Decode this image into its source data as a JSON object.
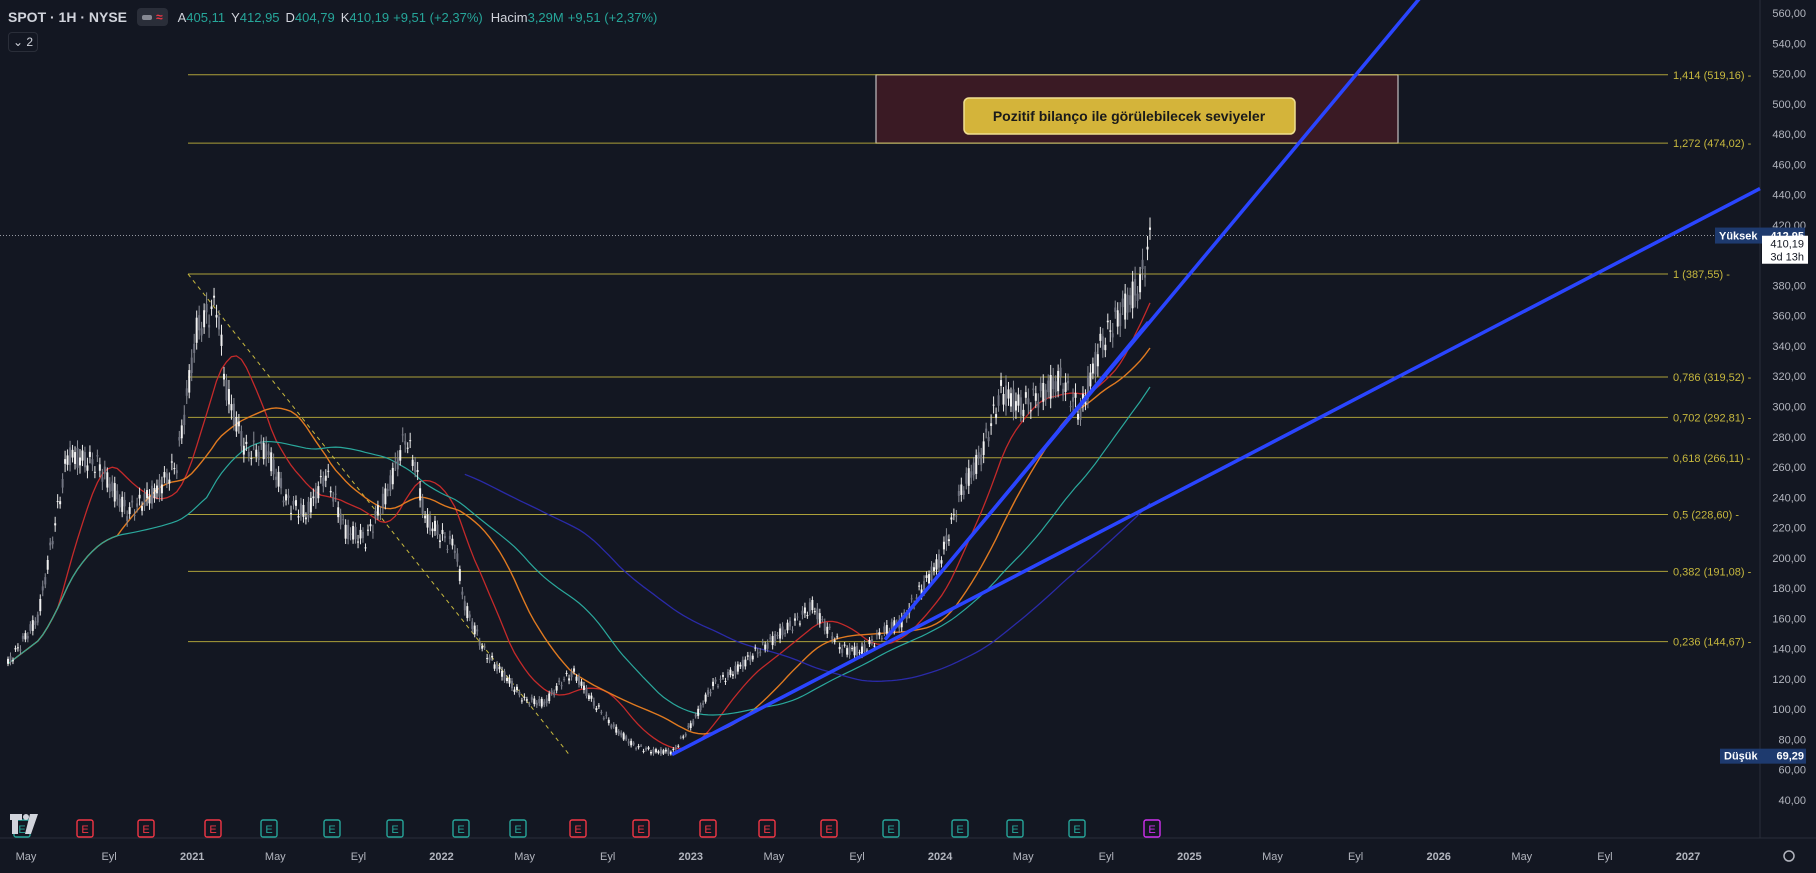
{
  "header": {
    "symbol": "SPOT · 1H · NYSE",
    "open_label": "A",
    "open": "405,11",
    "high_label": "Y",
    "high": "412,95",
    "low_label": "D",
    "low": "404,79",
    "close_label": "K",
    "close": "410,19",
    "change": "+9,51 (+2,37%)",
    "volume_label": "Hacim",
    "volume": "3,29M",
    "volume_change": "+9,51 (+2,37%)",
    "indicator_count": "2"
  },
  "colors": {
    "background": "#131722",
    "fib": "#c7b83e",
    "trendline": "#2a45ff",
    "ma_red": "#c42a2a",
    "ma_orange": "#e07a20",
    "ma_teal": "#2aa89c",
    "ma_navy": "#2a2aa8",
    "candle": "#e6e6e6",
    "annotation_bg": "#d4b43a",
    "zone_bg": "#3a1a24",
    "earnings_red": "#f23645",
    "earnings_green": "#26a69a",
    "earnings_purple": "#d030f0"
  },
  "chart_data": {
    "type": "candlestick",
    "title": "",
    "xlabel": "",
    "ylabel": "",
    "ylim": [
      40,
      565
    ],
    "y_ticks": [
      "560,00",
      "540,00",
      "520,00",
      "500,00",
      "480,00",
      "460,00",
      "440,00",
      "420,00",
      "380,00",
      "360,00",
      "340,00",
      "320,00",
      "300,00",
      "280,00",
      "260,00",
      "240,00",
      "220,00",
      "200,00",
      "180,00",
      "160,00",
      "140,00",
      "120,00",
      "100,00",
      "80,00",
      "60,00",
      "40,00"
    ],
    "x_ticks": [
      "May",
      "Eyl",
      "2021",
      "May",
      "Eyl",
      "2022",
      "May",
      "Eyl",
      "2023",
      "May",
      "Eyl",
      "2024",
      "May",
      "Eyl",
      "2025",
      "May",
      "Eyl",
      "2026",
      "May",
      "Eyl",
      "2027"
    ],
    "x_tick_bold": [
      false,
      false,
      true,
      false,
      false,
      true,
      false,
      false,
      true,
      false,
      false,
      true,
      false,
      false,
      true,
      false,
      false,
      true,
      false,
      false,
      true
    ],
    "fib_levels": [
      {
        "label": "1,414 (519,16)",
        "value": 519.16
      },
      {
        "label": "1,272 (474,02)",
        "value": 474.02
      },
      {
        "label": "1 (387,55)",
        "value": 387.55
      },
      {
        "label": "0,786 (319,52)",
        "value": 319.52
      },
      {
        "label": "0,702 (292,81)",
        "value": 292.81
      },
      {
        "label": "0,618 (266,11)",
        "value": 266.11
      },
      {
        "label": "0,5 (228,60)",
        "value": 228.6
      },
      {
        "label": "0,382 (191,08)",
        "value": 191.08
      },
      {
        "label": "0,236 (144,67)",
        "value": 144.67
      }
    ],
    "high_marker": {
      "label": "Yüksek",
      "value": "412,95",
      "y": 412.95
    },
    "low_marker": {
      "label": "Düşük",
      "value": "69,29",
      "y": 69.29
    },
    "last_price": {
      "value": "410,19",
      "countdown": "3d 13h",
      "y": 410.19
    },
    "annotation": {
      "text": "Pozitif bilanço ile görülebilecek seviyeler",
      "zone_top": 519.16,
      "zone_bottom": 474.02
    },
    "earnings_markers": [
      {
        "label": "E",
        "color": "green"
      },
      {
        "label": "E",
        "color": "red"
      },
      {
        "label": "E",
        "color": "red"
      },
      {
        "label": "E",
        "color": "red"
      },
      {
        "label": "E",
        "color": "green"
      },
      {
        "label": "E",
        "color": "green"
      },
      {
        "label": "E",
        "color": "green"
      },
      {
        "label": "E",
        "color": "green"
      },
      {
        "label": "E",
        "color": "green"
      },
      {
        "label": "E",
        "color": "red"
      },
      {
        "label": "E",
        "color": "red"
      },
      {
        "label": "E",
        "color": "red"
      },
      {
        "label": "E",
        "color": "red"
      },
      {
        "label": "E",
        "color": "red"
      },
      {
        "label": "E",
        "color": "green"
      },
      {
        "label": "E",
        "color": "green"
      },
      {
        "label": "E",
        "color": "green"
      },
      {
        "label": "E",
        "color": "green"
      },
      {
        "label": "E",
        "color": "purple"
      }
    ],
    "price_path": [
      [
        0,
        130
      ],
      [
        3,
        160
      ],
      [
        6,
        268
      ],
      [
        9,
        262
      ],
      [
        12,
        230
      ],
      [
        15,
        244
      ],
      [
        17,
        262
      ],
      [
        19,
        350
      ],
      [
        21,
        368
      ],
      [
        22,
        310
      ],
      [
        24,
        270
      ],
      [
        26,
        272
      ],
      [
        28,
        238
      ],
      [
        30,
        228
      ],
      [
        32,
        256
      ],
      [
        34,
        218
      ],
      [
        36,
        212
      ],
      [
        38,
        240
      ],
      [
        40,
        280
      ],
      [
        41,
        262
      ],
      [
        42,
        226
      ],
      [
        44,
        212
      ],
      [
        45,
        208
      ],
      [
        46,
        168
      ],
      [
        48,
        138
      ],
      [
        50,
        122
      ],
      [
        52,
        106
      ],
      [
        54,
        104
      ],
      [
        56,
        120
      ],
      [
        57,
        124
      ],
      [
        59,
        104
      ],
      [
        61,
        88
      ],
      [
        63,
        76
      ],
      [
        65,
        72
      ],
      [
        67,
        72
      ],
      [
        69,
        92
      ],
      [
        71,
        116
      ],
      [
        73,
        124
      ],
      [
        75,
        136
      ],
      [
        77,
        146
      ],
      [
        79,
        156
      ],
      [
        81,
        168
      ],
      [
        82,
        158
      ],
      [
        84,
        140
      ],
      [
        86,
        138
      ],
      [
        88,
        150
      ],
      [
        90,
        158
      ],
      [
        92,
        180
      ],
      [
        94,
        200
      ],
      [
        96,
        244
      ],
      [
        98,
        268
      ],
      [
        100,
        310
      ],
      [
        102,
        300
      ],
      [
        104,
        308
      ],
      [
        106,
        318
      ],
      [
        108,
        296
      ],
      [
        110,
        340
      ],
      [
        112,
        362
      ],
      [
        114,
        380
      ],
      [
        115,
        410
      ]
    ]
  }
}
